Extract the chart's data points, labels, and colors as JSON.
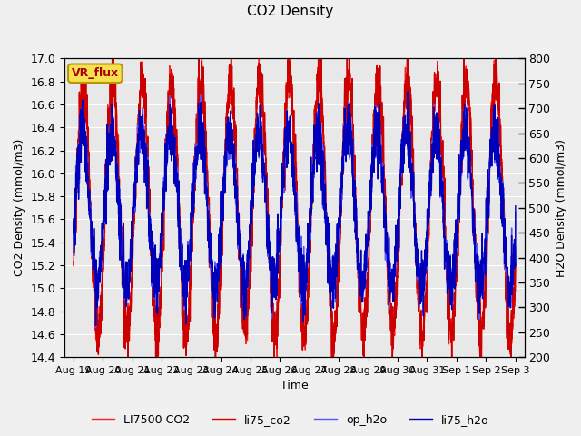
{
  "title": "CO2 Density",
  "xlabel": "Time",
  "ylabel_left": "CO2 Density (mmol/m3)",
  "ylabel_right": "H2O Density (mmol/m3)",
  "ylim_left": [
    14.4,
    17.0
  ],
  "ylim_right": [
    200,
    800
  ],
  "yticks_left": [
    14.4,
    14.6,
    14.8,
    15.0,
    15.2,
    15.4,
    15.6,
    15.8,
    16.0,
    16.2,
    16.4,
    16.6,
    16.8,
    17.0
  ],
  "yticks_right": [
    200,
    250,
    300,
    350,
    400,
    450,
    500,
    550,
    600,
    650,
    700,
    750,
    800
  ],
  "xtick_labels": [
    "Aug 19",
    "Aug 20",
    "Aug 21",
    "Aug 22",
    "Aug 23",
    "Aug 24",
    "Aug 25",
    "Aug 26",
    "Aug 27",
    "Aug 28",
    "Aug 29",
    "Aug 30",
    "Aug 31",
    "Sep 1",
    "Sep 2",
    "Sep 3"
  ],
  "background_color": "#f0f0f0",
  "plot_bg_color": "#e8e8e8",
  "grid_color": "#ffffff",
  "annotation_text": "VR_flux",
  "annotation_bg": "#f5e050",
  "annotation_border": "#b8960a",
  "co2_color1": "#ff2020",
  "co2_color2": "#cc0000",
  "h2o_color1": "#5555ff",
  "h2o_color2": "#0000bb",
  "legend_labels": [
    "LI7500 CO2",
    "li75_co2",
    "op_h2o",
    "li75_h2o"
  ]
}
